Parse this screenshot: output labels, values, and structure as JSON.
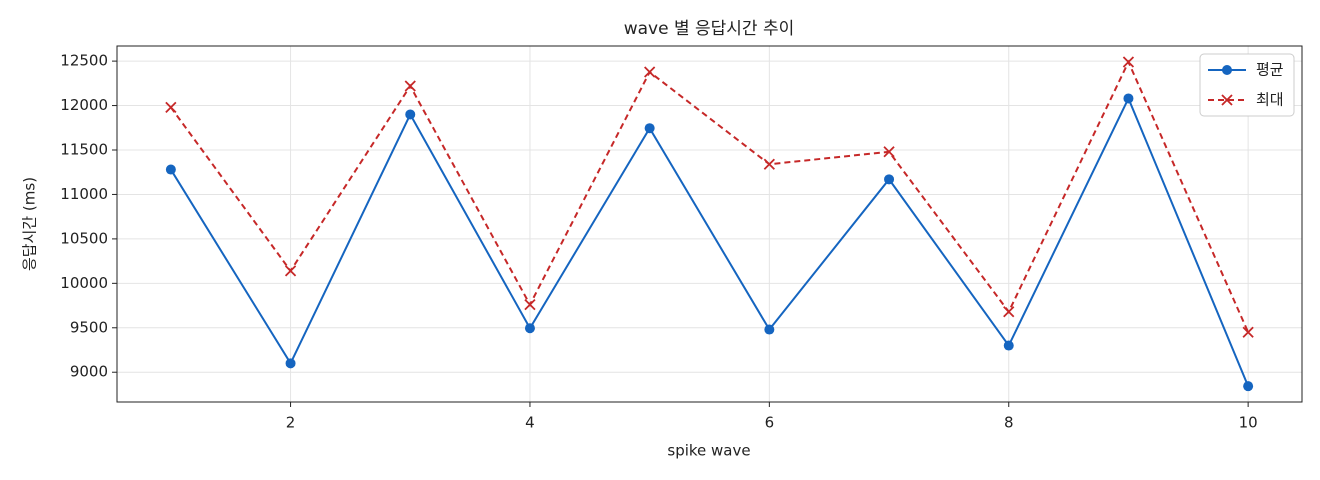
{
  "chart_data": {
    "type": "line",
    "title": "wave 별 응답시간 추이",
    "x_label": "spike wave",
    "y_label": "응답시간 (ms)",
    "x": [
      1,
      2,
      3,
      4,
      5,
      6,
      7,
      8,
      9,
      10
    ],
    "series": [
      {
        "name": "평균",
        "color": "#1565c0",
        "marker": "o",
        "dash": false,
        "values": [
          11280,
          9100,
          11900,
          9495,
          11745,
          9480,
          11170,
          9300,
          12080,
          8843
        ]
      },
      {
        "name": "최대",
        "color": "#c62828",
        "marker": "x",
        "dash": true,
        "values": [
          11980,
          10140,
          12220,
          9760,
          12377,
          11340,
          11480,
          9680,
          12490,
          9450
        ]
      }
    ],
    "xlim": [
      0.55,
      10.45
    ],
    "xticks": [
      2,
      4,
      6,
      8,
      10
    ],
    "ylim": [
      8665,
      12670
    ],
    "yticks": [
      9000,
      9500,
      10000,
      10500,
      11000,
      11500,
      12000,
      12500
    ],
    "grid": true,
    "legend": "upper right"
  }
}
